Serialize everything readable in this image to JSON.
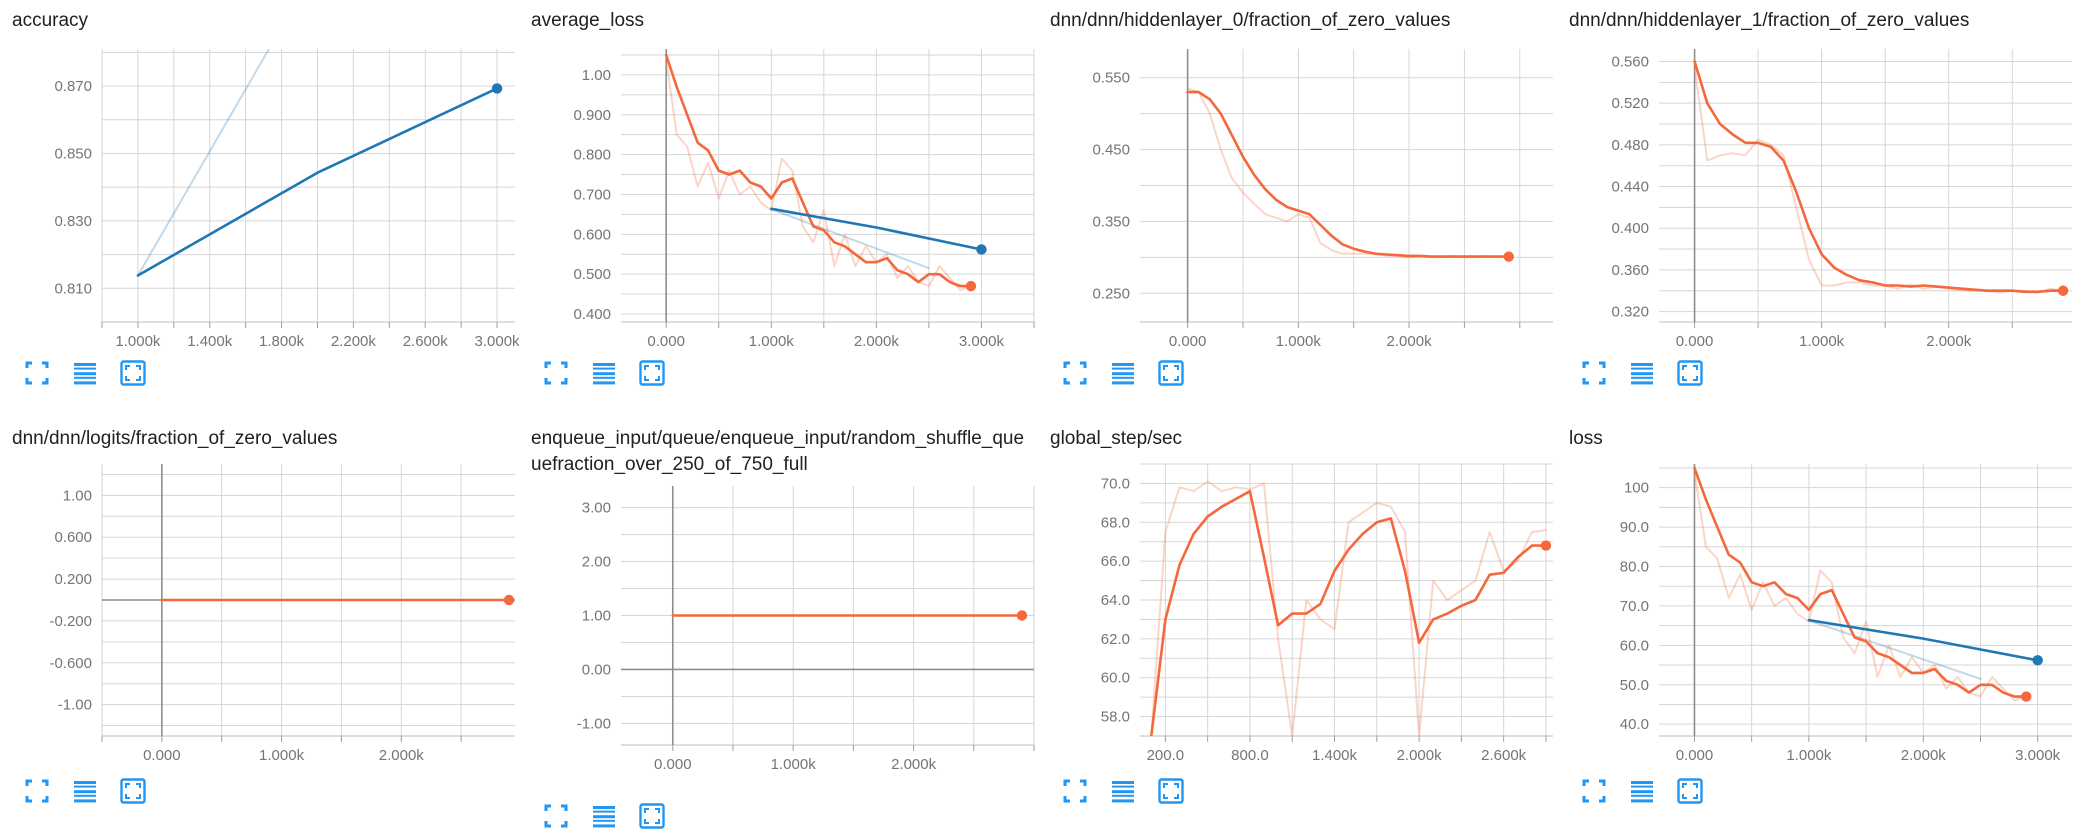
{
  "colors": {
    "orange": "#f4683c",
    "blue": "#1f77b4",
    "grid": "#d6d6d6",
    "axis": "#8e8e8e",
    "toolbar": "#2196f3"
  },
  "toolbar_icons": [
    "fit-to-data-icon",
    "toggle-log-scale-icon",
    "expand-chart-icon"
  ],
  "chart_data": [
    {
      "type": "line",
      "title": "accuracy",
      "xlim": [
        800,
        3100
      ],
      "ylim": [
        0.8,
        0.881
      ],
      "xticks": [
        1000,
        1400,
        1800,
        2200,
        2600,
        3000
      ],
      "xtick_labels": [
        "1.000k",
        "1.400k",
        "1.800k",
        "2.200k",
        "2.600k",
        "3.000k"
      ],
      "yticks": [
        0.81,
        0.83,
        0.85,
        0.87
      ],
      "ytick_labels": [
        "0.810",
        "0.830",
        "0.850",
        "0.870"
      ],
      "yaxis_at_zero": false,
      "series": [
        {
          "color": "blue",
          "x": [
            1000,
            2000,
            3000
          ],
          "y": [
            0.8138,
            0.8443,
            0.8693
          ],
          "marker": true
        },
        {
          "color": "blue",
          "faint": true,
          "x": [
            1000,
            1730
          ],
          "y": [
            0.8138,
            0.881
          ]
        }
      ]
    },
    {
      "type": "line",
      "title": "average_loss",
      "xlim": [
        -430,
        3500
      ],
      "ylim": [
        0.38,
        1.065
      ],
      "xticks": [
        0,
        1000,
        2000,
        3000
      ],
      "xtick_labels": [
        "0.000",
        "1.000k",
        "2.000k",
        "3.000k"
      ],
      "yticks": [
        0.4,
        0.5,
        0.6,
        0.7,
        0.8,
        0.9,
        1.0
      ],
      "ytick_labels": [
        "0.400",
        "0.500",
        "0.600",
        "0.700",
        "0.800",
        "0.900",
        "1.00"
      ],
      "yaxis_at_zero": true,
      "series": [
        {
          "color": "orange",
          "faint": true,
          "x": [
            0,
            100,
            200,
            300,
            400,
            500,
            600,
            700,
            800,
            900,
            1000,
            1100,
            1200,
            1300,
            1400,
            1500,
            1600,
            1700,
            1800,
            1900,
            2000,
            2100,
            2200,
            2300,
            2400,
            2500,
            2600,
            2700,
            2800,
            2900
          ],
          "y": [
            1.04,
            0.85,
            0.82,
            0.72,
            0.78,
            0.69,
            0.76,
            0.7,
            0.72,
            0.68,
            0.66,
            0.79,
            0.76,
            0.62,
            0.58,
            0.66,
            0.52,
            0.6,
            0.52,
            0.57,
            0.53,
            0.55,
            0.49,
            0.52,
            0.48,
            0.47,
            0.52,
            0.49,
            0.46,
            0.47
          ]
        },
        {
          "color": "blue",
          "faint": true,
          "x": [
            1000,
            2500
          ],
          "y": [
            0.663,
            0.515
          ]
        },
        {
          "color": "orange",
          "marker": true,
          "x": [
            0,
            100,
            200,
            300,
            400,
            500,
            600,
            700,
            800,
            900,
            1000,
            1100,
            1200,
            1300,
            1400,
            1500,
            1600,
            1700,
            1800,
            1900,
            2000,
            2100,
            2200,
            2300,
            2400,
            2500,
            2600,
            2700,
            2800,
            2900
          ],
          "y": [
            1.05,
            0.97,
            0.9,
            0.83,
            0.81,
            0.76,
            0.75,
            0.76,
            0.73,
            0.72,
            0.69,
            0.73,
            0.74,
            0.68,
            0.62,
            0.61,
            0.58,
            0.57,
            0.55,
            0.53,
            0.53,
            0.54,
            0.51,
            0.5,
            0.48,
            0.5,
            0.5,
            0.48,
            0.47,
            0.47
          ]
        },
        {
          "color": "blue",
          "marker": true,
          "x": [
            1000,
            2000,
            3000
          ],
          "y": [
            0.664,
            0.617,
            0.562
          ]
        }
      ]
    },
    {
      "type": "line",
      "title": "dnn/dnn/hiddenlayer_0/fraction_of_zero_values",
      "xlim": [
        -430,
        3300
      ],
      "ylim": [
        0.21,
        0.59
      ],
      "xticks": [
        0,
        1000,
        2000
      ],
      "xtick_labels": [
        "0.000",
        "1.000k",
        "2.000k"
      ],
      "yticks": [
        0.25,
        0.35,
        0.45,
        0.55
      ],
      "ytick_labels": [
        "0.250",
        "0.350",
        "0.450",
        "0.550"
      ],
      "yaxis_at_zero": true,
      "series": [
        {
          "color": "orange",
          "faint": true,
          "x": [
            0,
            100,
            200,
            300,
            400,
            500,
            600,
            700,
            800,
            900,
            1000,
            1100,
            1200,
            1300,
            1400,
            1500,
            1600,
            1700,
            1800,
            1900,
            2000,
            2100,
            2200,
            2300,
            2400,
            2500,
            2600,
            2700,
            2800,
            2900
          ],
          "y": [
            0.535,
            0.53,
            0.5,
            0.45,
            0.41,
            0.39,
            0.375,
            0.36,
            0.355,
            0.35,
            0.36,
            0.355,
            0.32,
            0.31,
            0.305,
            0.305,
            0.305,
            0.305,
            0.302,
            0.302,
            0.3,
            0.302,
            0.3,
            0.3,
            0.302,
            0.3,
            0.3,
            0.302,
            0.3,
            0.3
          ]
        },
        {
          "color": "orange",
          "marker": true,
          "x": [
            0,
            100,
            200,
            300,
            400,
            500,
            600,
            700,
            800,
            900,
            1000,
            1100,
            1200,
            1300,
            1400,
            1500,
            1600,
            1700,
            1800,
            1900,
            2000,
            2100,
            2200,
            2300,
            2400,
            2500,
            2600,
            2700,
            2800,
            2900
          ],
          "y": [
            0.53,
            0.53,
            0.52,
            0.5,
            0.47,
            0.44,
            0.415,
            0.395,
            0.38,
            0.37,
            0.365,
            0.36,
            0.345,
            0.33,
            0.318,
            0.312,
            0.308,
            0.305,
            0.304,
            0.303,
            0.302,
            0.302,
            0.301,
            0.301,
            0.301,
            0.301,
            0.301,
            0.301,
            0.301,
            0.301
          ]
        }
      ]
    },
    {
      "type": "line",
      "title": "dnn/dnn/hiddenlayer_1/fraction_of_zero_values",
      "xlim": [
        -280,
        2970
      ],
      "ylim": [
        0.31,
        0.572
      ],
      "xticks": [
        0,
        1000,
        2000
      ],
      "xtick_labels": [
        "0.000",
        "1.000k",
        "2.000k"
      ],
      "yticks": [
        0.32,
        0.36,
        0.4,
        0.44,
        0.48,
        0.52,
        0.56
      ],
      "ytick_labels": [
        "0.320",
        "0.360",
        "0.400",
        "0.440",
        "0.480",
        "0.520",
        "0.560"
      ],
      "yaxis_at_zero": true,
      "series": [
        {
          "color": "orange",
          "faint": true,
          "x": [
            0,
            100,
            200,
            300,
            400,
            500,
            600,
            700,
            800,
            900,
            1000,
            1100,
            1200,
            1300,
            1400,
            1500,
            1600,
            1700,
            1800,
            1900,
            2000,
            2100,
            2200,
            2300,
            2400,
            2500,
            2600,
            2700,
            2800,
            2900
          ],
          "y": [
            0.555,
            0.465,
            0.47,
            0.472,
            0.47,
            0.485,
            0.48,
            0.47,
            0.42,
            0.37,
            0.345,
            0.345,
            0.348,
            0.348,
            0.345,
            0.345,
            0.342,
            0.346,
            0.342,
            0.344,
            0.342,
            0.34,
            0.34,
            0.34,
            0.338,
            0.34,
            0.34,
            0.338,
            0.342,
            0.34
          ]
        },
        {
          "color": "orange",
          "marker": true,
          "x": [
            0,
            100,
            200,
            300,
            400,
            500,
            600,
            700,
            800,
            900,
            1000,
            1100,
            1200,
            1300,
            1400,
            1500,
            1600,
            1700,
            1800,
            1900,
            2000,
            2100,
            2200,
            2300,
            2400,
            2500,
            2600,
            2700,
            2800,
            2900
          ],
          "y": [
            0.56,
            0.52,
            0.5,
            0.49,
            0.482,
            0.482,
            0.478,
            0.465,
            0.435,
            0.4,
            0.375,
            0.362,
            0.355,
            0.35,
            0.348,
            0.345,
            0.345,
            0.344,
            0.345,
            0.344,
            0.343,
            0.342,
            0.341,
            0.34,
            0.34,
            0.34,
            0.339,
            0.339,
            0.34,
            0.34
          ]
        }
      ]
    },
    {
      "type": "line",
      "title": "dnn/dnn/logits/fraction_of_zero_values",
      "xlim": [
        -500,
        2950
      ],
      "ylim": [
        -1.3,
        1.3
      ],
      "xticks": [
        0,
        1000,
        2000
      ],
      "xtick_labels": [
        "0.000",
        "1.000k",
        "2.000k"
      ],
      "yticks": [
        -1.0,
        -0.6,
        -0.2,
        0.2,
        0.6,
        1.0
      ],
      "ytick_labels": [
        "-1.00",
        "-0.600",
        "-0.200",
        "0.200",
        "0.600",
        "1.00"
      ],
      "yaxis_at_zero": true,
      "series": [
        {
          "color": "orange",
          "marker": true,
          "x": [
            0,
            2900
          ],
          "y": [
            0.0,
            0.0
          ]
        }
      ]
    },
    {
      "type": "line",
      "title": "enqueue_input/queue/enqueue_input/random_shuffle_queuefraction_over_250_of_750_full",
      "xlim": [
        -430,
        3000
      ],
      "ylim": [
        -1.4,
        3.4
      ],
      "xticks": [
        0,
        1000,
        2000
      ],
      "xtick_labels": [
        "0.000",
        "1.000k",
        "2.000k"
      ],
      "yticks": [
        -1.0,
        0.0,
        1.0,
        2.0,
        3.0
      ],
      "ytick_labels": [
        "-1.00",
        "0.00",
        "1.00",
        "2.00",
        "3.00"
      ],
      "yaxis_at_zero": true,
      "series": [
        {
          "color": "orange",
          "marker": true,
          "x": [
            0,
            2900
          ],
          "y": [
            1.0,
            1.0
          ]
        }
      ]
    },
    {
      "type": "line",
      "title": "global_step/sec",
      "xlim": [
        20,
        2950
      ],
      "ylim": [
        57.0,
        71.0
      ],
      "xticks": [
        200,
        800,
        1400,
        2000,
        2600
      ],
      "xtick_labels": [
        "200.0",
        "800.0",
        "1.400k",
        "2.000k",
        "2.600k"
      ],
      "yticks": [
        58,
        60,
        62,
        64,
        66,
        68,
        70
      ],
      "ytick_labels": [
        "58.0",
        "60.0",
        "62.0",
        "64.0",
        "66.0",
        "68.0",
        "70.0"
      ],
      "yaxis_at_zero": false,
      "series": [
        {
          "color": "orange",
          "faint": true,
          "x": [
            100,
            200,
            300,
            400,
            500,
            600,
            700,
            800,
            900,
            1000,
            1100,
            1200,
            1300,
            1400,
            1500,
            1600,
            1700,
            1800,
            1900,
            2000,
            2100,
            2200,
            2300,
            2400,
            2500,
            2600,
            2700,
            2800,
            2900
          ],
          "y": [
            57.0,
            67.5,
            69.8,
            69.6,
            70.1,
            69.6,
            69.8,
            69.7,
            70.0,
            62.0,
            57.0,
            64.0,
            63.0,
            62.5,
            68.0,
            68.5,
            69.0,
            68.8,
            67.5,
            57.0,
            65.0,
            64.0,
            64.5,
            65.0,
            67.5,
            65.5,
            66.0,
            67.5,
            67.6
          ]
        },
        {
          "color": "orange",
          "marker": true,
          "x": [
            100,
            200,
            300,
            400,
            500,
            600,
            700,
            800,
            900,
            1000,
            1100,
            1200,
            1300,
            1400,
            1500,
            1600,
            1700,
            1800,
            1900,
            2000,
            2100,
            2200,
            2300,
            2400,
            2500,
            2600,
            2700,
            2800,
            2900
          ],
          "y": [
            57.0,
            63.0,
            65.8,
            67.4,
            68.3,
            68.8,
            69.2,
            69.6,
            66.2,
            62.7,
            63.3,
            63.3,
            63.8,
            65.5,
            66.6,
            67.4,
            68.0,
            68.2,
            65.5,
            61.8,
            63.0,
            63.3,
            63.7,
            64.0,
            65.3,
            65.4,
            66.2,
            66.8,
            66.8
          ]
        }
      ]
    },
    {
      "type": "line",
      "title": "loss",
      "xlim": [
        -310,
        3300
      ],
      "ylim": [
        37.0,
        106.0
      ],
      "xticks": [
        0,
        1000,
        2000,
        3000
      ],
      "xtick_labels": [
        "0.000",
        "1.000k",
        "2.000k",
        "3.000k"
      ],
      "yticks": [
        40,
        50,
        60,
        70,
        80,
        90,
        100
      ],
      "ytick_labels": [
        "40.0",
        "50.0",
        "60.0",
        "70.0",
        "80.0",
        "90.0",
        "100"
      ],
      "yaxis_at_zero": true,
      "series": [
        {
          "color": "orange",
          "faint": true,
          "x": [
            0,
            100,
            200,
            300,
            400,
            500,
            600,
            700,
            800,
            900,
            1000,
            1100,
            1200,
            1300,
            1400,
            1500,
            1600,
            1700,
            1800,
            1900,
            2000,
            2100,
            2200,
            2300,
            2400,
            2500,
            2600,
            2700,
            2800,
            2900
          ],
          "y": [
            104,
            85,
            82,
            72,
            78,
            69,
            76,
            70,
            72,
            68,
            66,
            79,
            76,
            62,
            58,
            66,
            52,
            60,
            52,
            57,
            53,
            55,
            49,
            52,
            48,
            47,
            52,
            49,
            46,
            47
          ]
        },
        {
          "color": "blue",
          "faint": true,
          "x": [
            1000,
            2500
          ],
          "y": [
            66.3,
            51.5
          ]
        },
        {
          "color": "orange",
          "marker": true,
          "x": [
            0,
            100,
            200,
            300,
            400,
            500,
            600,
            700,
            800,
            900,
            1000,
            1100,
            1200,
            1300,
            1400,
            1500,
            1600,
            1700,
            1800,
            1900,
            2000,
            2100,
            2200,
            2300,
            2400,
            2500,
            2600,
            2700,
            2800,
            2900
          ],
          "y": [
            105,
            97,
            90,
            83,
            81,
            76,
            75,
            76,
            73,
            72,
            69,
            73,
            74,
            68,
            62,
            61,
            58,
            57,
            55,
            53,
            53,
            54,
            51,
            50,
            48,
            50,
            50,
            48,
            47,
            47
          ]
        },
        {
          "color": "blue",
          "marker": true,
          "x": [
            1000,
            2000,
            3000
          ],
          "y": [
            66.4,
            61.7,
            56.2
          ]
        }
      ]
    }
  ]
}
